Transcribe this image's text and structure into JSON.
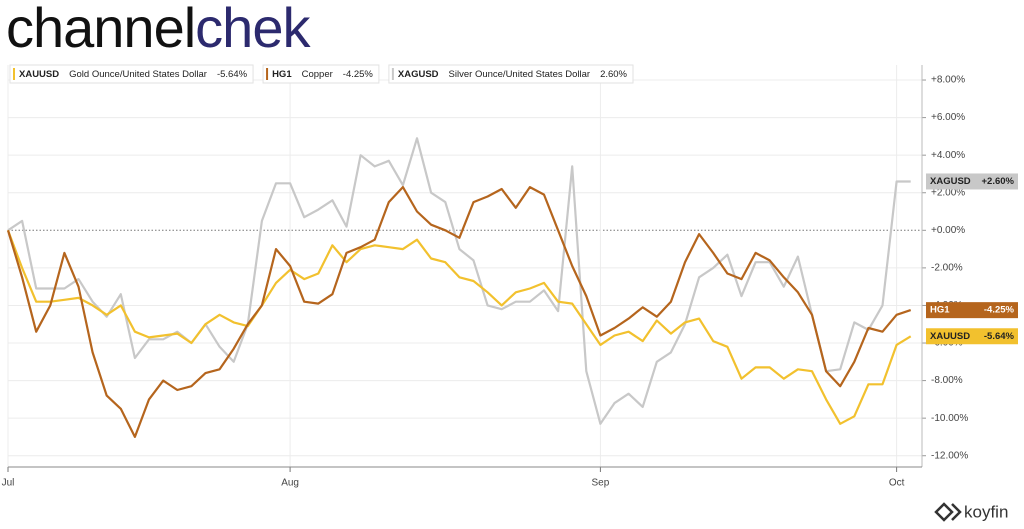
{
  "logo": {
    "first": "channel",
    "second": "chek"
  },
  "brand": "koyfin",
  "chart_data": {
    "type": "line",
    "x": [
      0,
      1,
      2,
      3,
      4,
      5,
      6,
      7,
      8,
      9,
      10,
      11,
      12,
      13,
      14,
      15,
      16,
      17,
      18,
      19,
      20,
      21,
      22,
      23,
      24,
      25,
      26,
      27,
      28,
      29,
      30,
      31,
      32,
      33,
      34,
      35,
      36,
      37,
      38,
      39,
      40,
      41,
      42,
      43,
      44,
      45,
      46,
      47,
      48,
      49,
      50,
      51,
      52,
      53,
      54,
      55,
      56,
      57,
      58,
      59,
      60,
      61,
      62,
      63,
      64
    ],
    "xlim": [
      0,
      64.8
    ],
    "xticks": [
      {
        "value": 0,
        "label": "Jul"
      },
      {
        "value": 20,
        "label": "Aug"
      },
      {
        "value": 42,
        "label": "Sep"
      },
      {
        "value": 63,
        "label": "Oct"
      }
    ],
    "ylim": [
      -12.6,
      8.8
    ],
    "yticks": [
      {
        "value": 8,
        "label": "+8.00%"
      },
      {
        "value": 6,
        "label": "+6.00%"
      },
      {
        "value": 4,
        "label": "+4.00%"
      },
      {
        "value": 2,
        "label": "+2.00%"
      },
      {
        "value": 0,
        "label": "+0.00%"
      },
      {
        "value": -2,
        "label": "-2.00%"
      },
      {
        "value": -4,
        "label": "-4.00%"
      },
      {
        "value": -6,
        "label": "-6.00%"
      },
      {
        "value": -8,
        "label": "-8.00%"
      },
      {
        "value": -10,
        "label": "-10.00%"
      },
      {
        "value": -12,
        "label": "-12.00%"
      }
    ],
    "grid": true,
    "series": [
      {
        "name": "XAUUSD",
        "description": "Gold Ounce/United States Dollar",
        "legend_value": "-5.64%",
        "end_label": "-5.64%",
        "color": "#f2c12e",
        "badge_text_color": "#222222",
        "values": [
          0,
          -2.0,
          -3.8,
          -3.8,
          -3.7,
          -3.6,
          -4.0,
          -4.5,
          -4.0,
          -5.4,
          -5.7,
          -5.6,
          -5.5,
          -6.0,
          -5.0,
          -4.5,
          -4.9,
          -5.1,
          -4.0,
          -2.8,
          -2.1,
          -2.6,
          -2.3,
          -0.8,
          -1.7,
          -1.0,
          -0.8,
          -0.9,
          -1.0,
          -0.5,
          -1.5,
          -1.7,
          -2.5,
          -2.7,
          -3.3,
          -4.0,
          -3.3,
          -3.1,
          -2.8,
          -3.8,
          -3.9,
          -5.0,
          -6.1,
          -5.6,
          -5.4,
          -5.9,
          -4.8,
          -5.5,
          -4.9,
          -4.7,
          -5.9,
          -6.2,
          -7.9,
          -7.3,
          -7.3,
          -7.9,
          -7.4,
          -7.5,
          -9.0,
          -10.3,
          -9.9,
          -8.2,
          -8.2,
          -6.1,
          -5.64
        ]
      },
      {
        "name": "HG1",
        "description": "Copper",
        "legend_value": "-4.25%",
        "end_label": "-4.25%",
        "color": "#b5651d",
        "badge_text_color": "#ffffff",
        "values": [
          0,
          -2.5,
          -5.4,
          -4.0,
          -1.2,
          -3.0,
          -6.5,
          -8.8,
          -9.5,
          -11.0,
          -9.0,
          -8.0,
          -8.5,
          -8.3,
          -7.6,
          -7.4,
          -6.3,
          -5.0,
          -4.0,
          -1.0,
          -1.9,
          -3.8,
          -3.9,
          -3.4,
          -1.2,
          -0.9,
          -0.5,
          1.5,
          2.3,
          1.0,
          0.3,
          0.0,
          -0.4,
          1.5,
          1.8,
          2.2,
          1.2,
          2.3,
          1.9,
          0.0,
          -1.9,
          -3.5,
          -5.6,
          -5.2,
          -4.7,
          -4.1,
          -4.6,
          -3.8,
          -1.7,
          -0.2,
          -1.2,
          -2.3,
          -2.6,
          -1.2,
          -1.6,
          -2.5,
          -3.3,
          -4.5,
          -7.5,
          -8.3,
          -7.0,
          -5.2,
          -5.4,
          -4.5,
          -4.25
        ]
      },
      {
        "name": "XAGUSD",
        "description": "Silver Ounce/United States Dollar",
        "legend_value": "2.60%",
        "end_label": "+2.60%",
        "color": "#c8c8c8",
        "badge_text_color": "#222222",
        "values": [
          0,
          0.5,
          -3.1,
          -3.1,
          -3.1,
          -2.6,
          -3.8,
          -4.6,
          -3.4,
          -6.8,
          -5.8,
          -5.8,
          -5.4,
          -6.0,
          -5.0,
          -6.2,
          -7.0,
          -5.0,
          0.5,
          2.5,
          2.5,
          0.7,
          1.1,
          1.6,
          0.2,
          4.0,
          3.4,
          3.7,
          2.4,
          4.9,
          2.0,
          1.5,
          -1.0,
          -1.6,
          -4.0,
          -4.2,
          -3.8,
          -3.8,
          -3.2,
          -4.3,
          3.4,
          -7.5,
          -10.3,
          -9.2,
          -8.7,
          -9.4,
          -7.0,
          -6.5,
          -5.0,
          -2.5,
          -2.0,
          -1.3,
          -3.5,
          -1.7,
          -1.7,
          -3.0,
          -1.4,
          -4.5,
          -7.5,
          -7.4,
          -4.9,
          -5.3,
          -4.0,
          2.6,
          2.6
        ]
      }
    ]
  }
}
